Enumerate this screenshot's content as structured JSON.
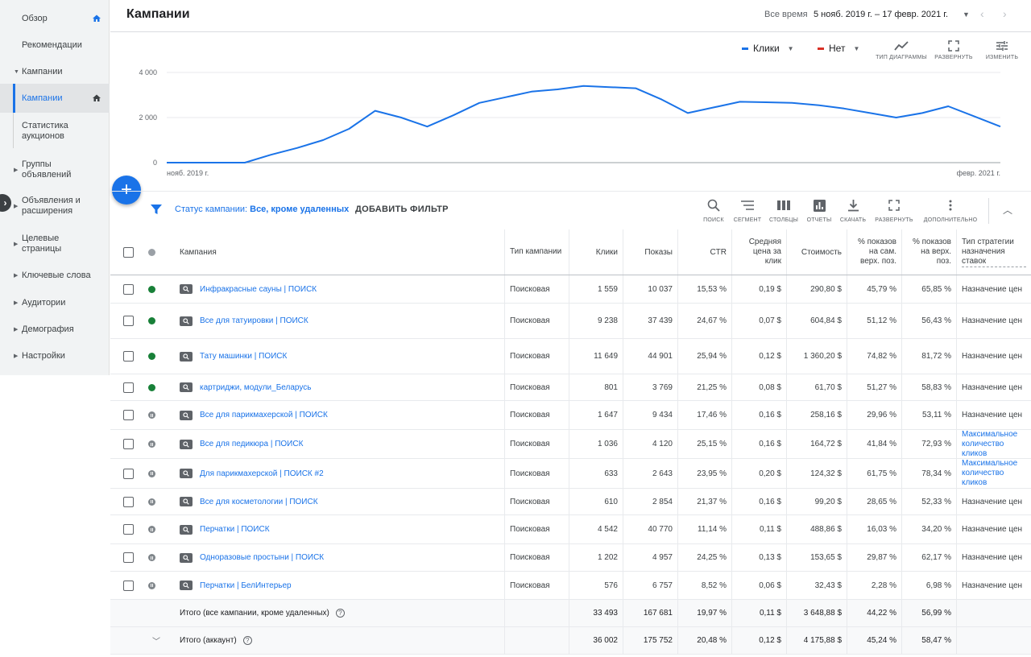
{
  "sidebar": {
    "items": [
      {
        "label": "Обзор",
        "home": true
      },
      {
        "label": "Рекомендации"
      },
      {
        "label": "Кампании",
        "expanded": true
      },
      {
        "label": "Кампании",
        "active": true,
        "home": true
      },
      {
        "label": "Статистика аукционов",
        "sub": true
      },
      {
        "label": "Группы объявлений"
      },
      {
        "label": "Объявления и расширения"
      },
      {
        "label": "Целевые страницы"
      },
      {
        "label": "Ключевые слова"
      },
      {
        "label": "Аудитории"
      },
      {
        "label": "Демография"
      },
      {
        "label": "Настройки"
      }
    ]
  },
  "header": {
    "title": "Кампании",
    "range_label": "Все время",
    "range_value": "5 нояб. 2019 г. – 17 февр. 2021 г."
  },
  "chart_controls": {
    "metric1": "Клики",
    "metric1_color": "#1a73e8",
    "metric2": "Нет",
    "metric2_color": "#d93025",
    "tools": [
      "ТИП ДИАГРАММЫ",
      "РАЗВЕРНУТЬ",
      "ИЗМЕНИТЬ"
    ]
  },
  "chart_data": {
    "type": "line",
    "y_ticks": [
      "4 000",
      "2 000",
      "0"
    ],
    "ylim": [
      0,
      4000
    ],
    "x_labels": [
      "нояб. 2019 г.",
      "февр. 2021 г."
    ],
    "series": [
      {
        "name": "Клики",
        "color": "#1a73e8",
        "values": [
          0,
          0,
          0,
          0,
          350,
          650,
          1000,
          1500,
          2300,
          2000,
          1600,
          2100,
          2650,
          2900,
          3150,
          3250,
          3400,
          3350,
          3300,
          2800,
          2200,
          2450,
          2700,
          2680,
          2650,
          2550,
          2400,
          2200,
          2000,
          2200,
          2500,
          2050,
          1600
        ]
      }
    ]
  },
  "toolbar": {
    "filter_label": "Статус кампании:",
    "filter_value": "Все, кроме удаленных",
    "add_filter": "ДОБАВИТЬ ФИЛЬТР",
    "tools": [
      "ПОИСК",
      "СЕГМЕНТ",
      "СТОЛБЦЫ",
      "ОТЧЕТЫ",
      "СКАЧАТЬ",
      "РАЗВЕРНУТЬ",
      "ДОПОЛНИТЕЛЬНО"
    ]
  },
  "table": {
    "headers": {
      "name": "Кампания",
      "type": "Тип кампании",
      "clicks": "Клики",
      "impr": "Показы",
      "ctr": "CTR",
      "cpc": "Средняя цена за клик",
      "cost": "Стоимость",
      "top": "% показов на сам. верх. поз.",
      "abs": "% показов на верх. поз.",
      "bid": "Тип стратегии назначения ставок"
    },
    "rows": [
      {
        "status": "active",
        "name": "Инфракрасные сауны | ПОИСК",
        "type": "Поисковая",
        "clicks": "1 559",
        "impr": "10 037",
        "ctr": "15,53 %",
        "cpc": "0,19 $",
        "cost": "290,80 $",
        "top": "45,79 %",
        "abs": "65,85 %",
        "bid": "Назначение цен"
      },
      {
        "status": "active",
        "name": "Все для татуировки | ПОИСК",
        "type": "Поисковая",
        "clicks": "9 238",
        "impr": "37 439",
        "ctr": "24,67 %",
        "cpc": "0,07 $",
        "cost": "604,84 $",
        "top": "51,12 %",
        "abs": "56,43 %",
        "bid": "Назначение цен"
      },
      {
        "status": "active",
        "name": "Тату машинки | ПОИСК",
        "type": "Поисковая",
        "clicks": "11 649",
        "impr": "44 901",
        "ctr": "25,94 %",
        "cpc": "0,12 $",
        "cost": "1 360,20 $",
        "top": "74,82 %",
        "abs": "81,72 %",
        "bid": "Назначение цен"
      },
      {
        "status": "active",
        "name": "картриджи, модули_Беларусь",
        "type": "Поисковая",
        "clicks": "801",
        "impr": "3 769",
        "ctr": "21,25 %",
        "cpc": "0,08 $",
        "cost": "61,70 $",
        "top": "51,27 %",
        "abs": "58,83 %",
        "bid": "Назначение цен"
      },
      {
        "status": "paused",
        "name": "Все для парикмахерской | ПОИСК",
        "type": "Поисковая",
        "clicks": "1 647",
        "impr": "9 434",
        "ctr": "17,46 %",
        "cpc": "0,16 $",
        "cost": "258,16 $",
        "top": "29,96 %",
        "abs": "53,11 %",
        "bid": "Назначение цен"
      },
      {
        "status": "paused",
        "name": "Все для педикюра | ПОИСК",
        "type": "Поисковая",
        "clicks": "1 036",
        "impr": "4 120",
        "ctr": "25,15 %",
        "cpc": "0,16 $",
        "cost": "164,72 $",
        "top": "41,84 %",
        "abs": "72,93 %",
        "bid": "Максимальное количество кликов",
        "bid_link": true
      },
      {
        "status": "paused",
        "name": "Для парикмахерской | ПОИСК #2",
        "type": "Поисковая",
        "clicks": "633",
        "impr": "2 643",
        "ctr": "23,95 %",
        "cpc": "0,20 $",
        "cost": "124,32 $",
        "top": "61,75 %",
        "abs": "78,34 %",
        "bid": "Максимальное количество кликов",
        "bid_link": true
      },
      {
        "status": "paused",
        "name": "Все для косметологии | ПОИСК",
        "type": "Поисковая",
        "clicks": "610",
        "impr": "2 854",
        "ctr": "21,37 %",
        "cpc": "0,16 $",
        "cost": "99,20 $",
        "top": "28,65 %",
        "abs": "52,33 %",
        "bid": "Назначение цен"
      },
      {
        "status": "paused",
        "name": "Перчатки | ПОИСК",
        "type": "Поисковая",
        "clicks": "4 542",
        "impr": "40 770",
        "ctr": "11,14 %",
        "cpc": "0,11 $",
        "cost": "488,86 $",
        "top": "16,03 %",
        "abs": "34,20 %",
        "bid": "Назначение цен"
      },
      {
        "status": "paused",
        "name": "Одноразовые простыни | ПОИСК",
        "type": "Поисковая",
        "clicks": "1 202",
        "impr": "4 957",
        "ctr": "24,25 %",
        "cpc": "0,13 $",
        "cost": "153,65 $",
        "top": "29,87 %",
        "abs": "62,17 %",
        "bid": "Назначение цен"
      },
      {
        "status": "paused",
        "name": "Перчатки | БелИнтерьер",
        "type": "Поисковая",
        "clicks": "576",
        "impr": "6 757",
        "ctr": "8,52 %",
        "cpc": "0,06 $",
        "cost": "32,43 $",
        "top": "2,28 %",
        "abs": "6,98 %",
        "bid": "Назначение цен"
      }
    ],
    "totals": [
      {
        "label": "Итого (все кампании, кроме удаленных)",
        "clicks": "33 493",
        "impr": "167 681",
        "ctr": "19,97 %",
        "cpc": "0,11 $",
        "cost": "3 648,88 $",
        "top": "44,22 %",
        "abs": "56,99 %"
      },
      {
        "label": "Итого (аккаунт)",
        "clicks": "36 002",
        "impr": "175 752",
        "ctr": "20,48 %",
        "cpc": "0,12 $",
        "cost": "4 175,88 $",
        "top": "45,24 %",
        "abs": "58,47 %"
      }
    ]
  }
}
